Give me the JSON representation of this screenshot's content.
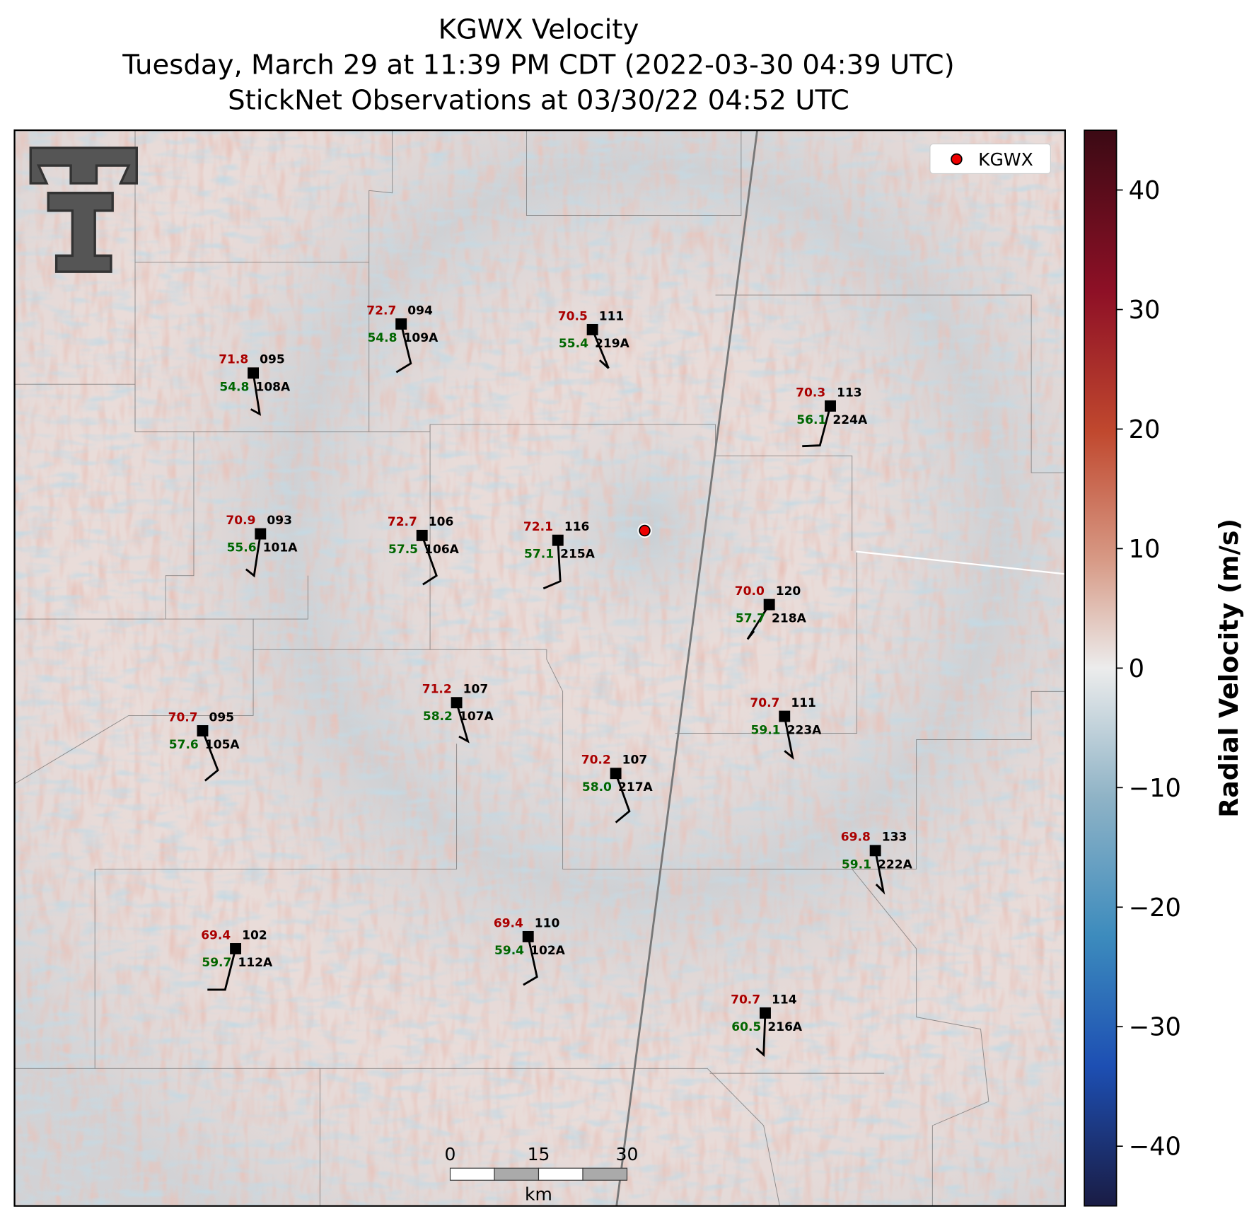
{
  "title": "KGWX Velocity",
  "subtitle": "Tuesday, March 29 at 11:39 PM CDT (2022-03-30 04:39 UTC)",
  "subtitle2": "StickNet Observations at 03/30/22 04:52 UTC",
  "legend": "KGWX",
  "colorbar": {
    "label": "Radial Velocity (m/s)",
    "lim": [
      -45,
      45
    ],
    "ticks": [
      {
        "value": -40,
        "label": "−40"
      },
      {
        "value": -30,
        "label": "−30"
      },
      {
        "value": -20,
        "label": "−20"
      },
      {
        "value": -10,
        "label": "−10"
      },
      0,
      10,
      20,
      30,
      40
    ]
  },
  "scale_bar": {
    "ticks": [
      0,
      15,
      30
    ],
    "unit": "km"
  },
  "stations": [
    {
      "temperature": "71.8",
      "dewpoint": "54.8",
      "code": "095",
      "id": "108A"
    },
    {
      "temperature": "72.7",
      "dewpoint": "54.8",
      "code": "094",
      "id": "109A"
    },
    {
      "temperature": "70.5",
      "dewpoint": "55.4",
      "code": "111",
      "id": "219A"
    },
    {
      "temperature": "70.3",
      "dewpoint": "56.1",
      "code": "113",
      "id": "224A"
    },
    {
      "temperature": "70.9",
      "dewpoint": "55.6",
      "code": "093",
      "id": "101A"
    },
    {
      "temperature": "72.7",
      "dewpoint": "57.5",
      "code": "106",
      "id": "106A"
    },
    {
      "temperature": "72.1",
      "dewpoint": "57.1",
      "code": "116",
      "id": "215A"
    },
    {
      "temperature": "70.0",
      "dewpoint": "57.7",
      "code": "120",
      "id": "218A"
    },
    {
      "temperature": "71.2",
      "dewpoint": "58.2",
      "code": "107",
      "id": "107A"
    },
    {
      "temperature": "70.7",
      "dewpoint": "57.6",
      "code": "095",
      "id": "105A"
    },
    {
      "temperature": "70.7",
      "dewpoint": "59.1",
      "code": "111",
      "id": "223A"
    },
    {
      "temperature": "70.2",
      "dewpoint": "58.0",
      "code": "107",
      "id": "217A"
    },
    {
      "temperature": "69.8",
      "dewpoint": "59.1",
      "code": "133",
      "id": "222A"
    },
    {
      "temperature": "69.4",
      "dewpoint": "59.7",
      "code": "102",
      "id": "112A"
    },
    {
      "temperature": "69.4",
      "dewpoint": "59.4",
      "code": "110",
      "id": "102A"
    },
    {
      "temperature": "70.7",
      "dewpoint": "60.5",
      "code": "114",
      "id": "216A"
    }
  ]
}
